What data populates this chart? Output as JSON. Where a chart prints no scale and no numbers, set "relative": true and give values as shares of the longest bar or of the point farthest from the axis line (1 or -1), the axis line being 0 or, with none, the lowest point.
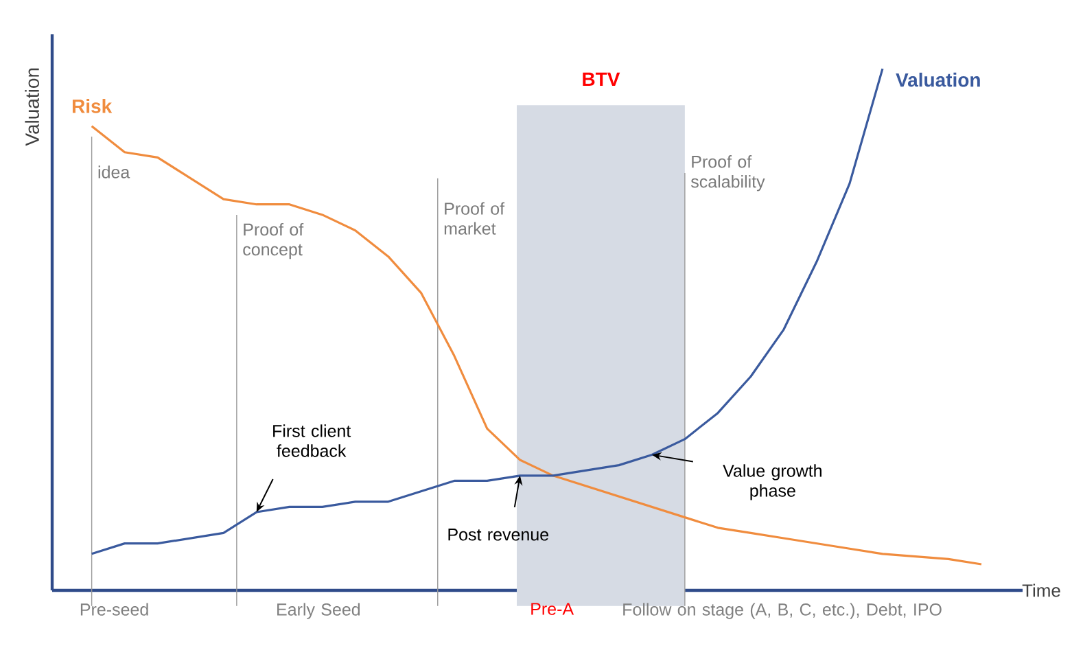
{
  "chart_data": {
    "type": "line",
    "relative": true,
    "xlabel": "Time",
    "ylabel": "Valuation",
    "tick_labels": false,
    "marker": "none",
    "line_style": "solid",
    "categories": [
      null,
      null,
      null,
      null,
      null,
      null,
      null,
      null,
      null,
      null,
      null,
      null,
      null,
      null,
      null,
      null,
      null,
      null,
      null,
      null,
      null,
      null,
      null,
      null,
      null,
      null,
      null,
      null
    ],
    "series": [
      {
        "name": "Risk",
        "color": "#f08c3e",
        "values": [
          0.89,
          0.84,
          0.83,
          0.79,
          0.75,
          0.74,
          0.74,
          0.72,
          0.69,
          0.64,
          0.57,
          0.45,
          0.31,
          0.25,
          0.22,
          0.2,
          0.18,
          0.16,
          0.14,
          0.12,
          0.11,
          0.1,
          0.09,
          0.08,
          0.07,
          0.065,
          0.06,
          0.05
        ]
      },
      {
        "name": "Valuation",
        "color": "#3a5a9e",
        "values": [
          0.07,
          0.09,
          0.09,
          0.1,
          0.11,
          0.15,
          0.16,
          0.16,
          0.17,
          0.17,
          0.19,
          0.21,
          0.21,
          0.22,
          0.22,
          0.23,
          0.24,
          0.26,
          0.29,
          0.34,
          0.41,
          0.5,
          0.63,
          0.78,
          1.0,
          null,
          null,
          null
        ]
      }
    ],
    "annotations": [
      "BTV",
      "idea",
      "Proof of concept",
      "Proof of market",
      "Proof of scalability",
      "First client feedback",
      "Post revenue",
      "Value growth phase",
      "Pre-seed",
      "Early Seed",
      "Pre-A",
      "Follow on stage (A, B, C, etc.), Debt, IPO"
    ]
  }
}
